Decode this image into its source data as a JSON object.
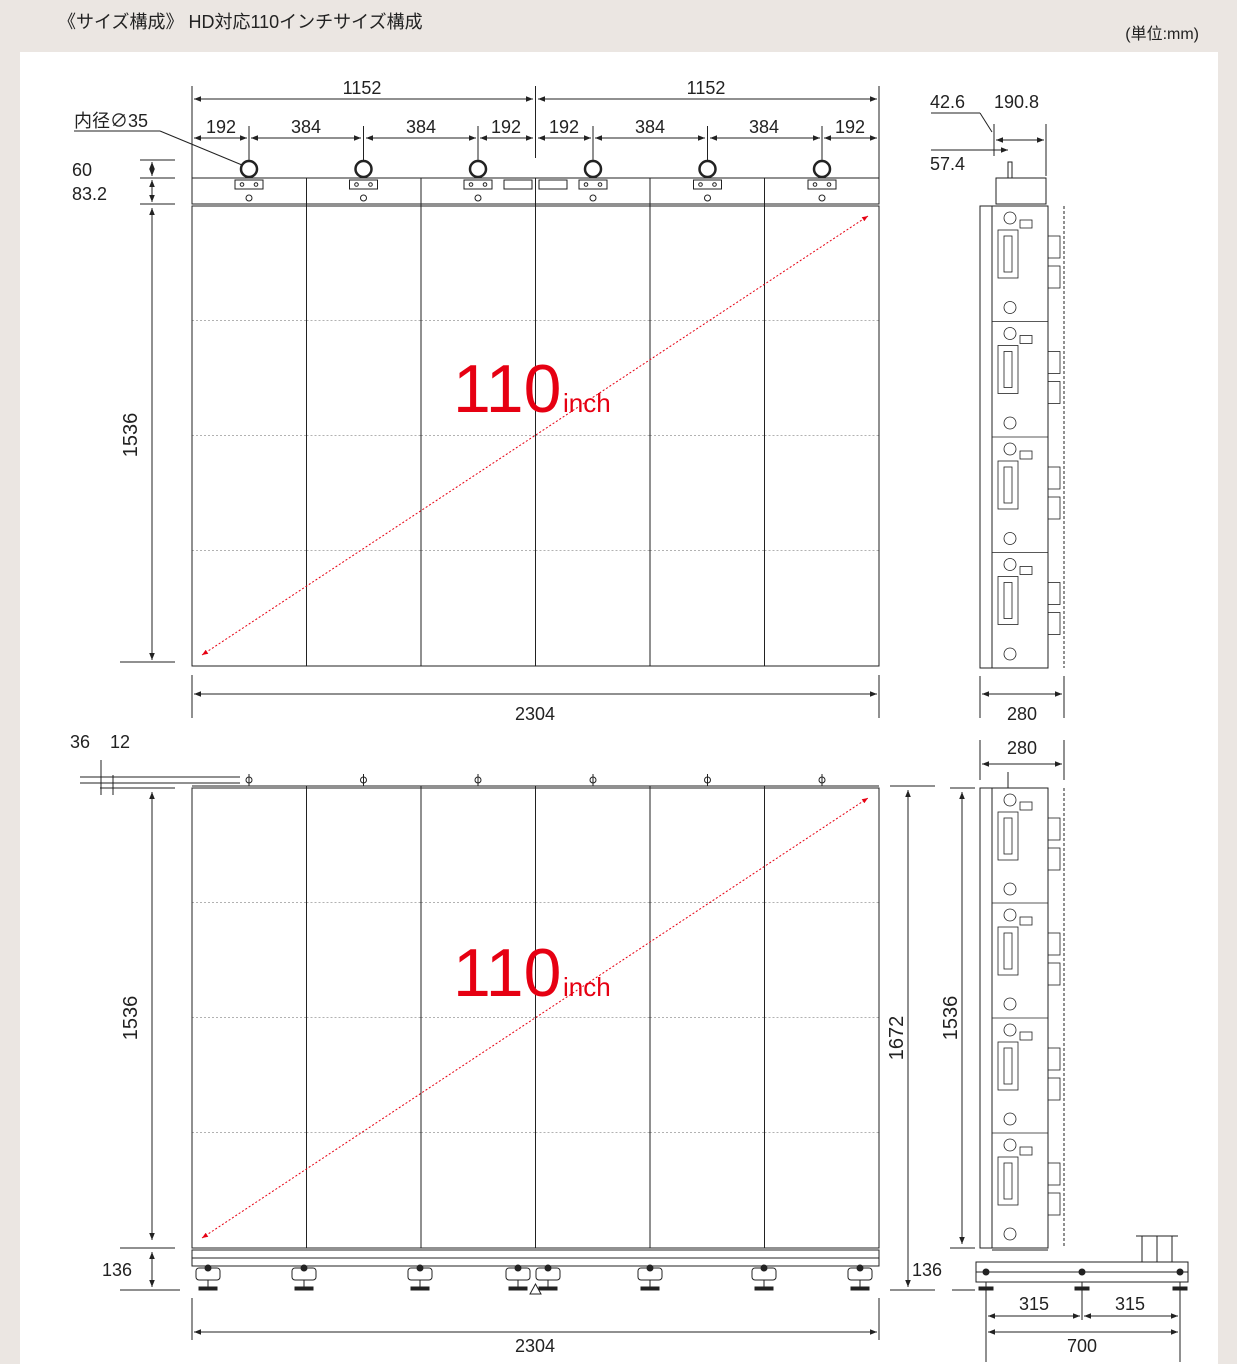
{
  "header": {
    "title": "《サイズ構成》 HD対応110インチサイズ構成",
    "unit": "(単位:mm)"
  },
  "accent_color": "#e60012",
  "top_view": {
    "inner_diameter_label": "内径∅35",
    "half_widths": [
      "1152",
      "1152"
    ],
    "segments": [
      "192",
      "384",
      "384",
      "192",
      "192",
      "384",
      "384",
      "192"
    ],
    "top_heights": [
      "60",
      "83.2"
    ],
    "height": "1536",
    "width": "2304",
    "size_number": "110",
    "size_unit": "inch"
  },
  "top_side": {
    "dims": [
      "42.6",
      "190.8",
      "57.4"
    ],
    "depth": "280"
  },
  "bottom_view": {
    "top_offsets": [
      "36",
      "12"
    ],
    "height": "1536",
    "base_height": "136",
    "total_height": "1672",
    "width": "2304",
    "size_number": "110",
    "size_unit": "inch"
  },
  "bottom_side": {
    "depth": "280",
    "height": "1536",
    "base_height": "136",
    "feet": [
      "315",
      "315"
    ],
    "total_depth": "700"
  }
}
